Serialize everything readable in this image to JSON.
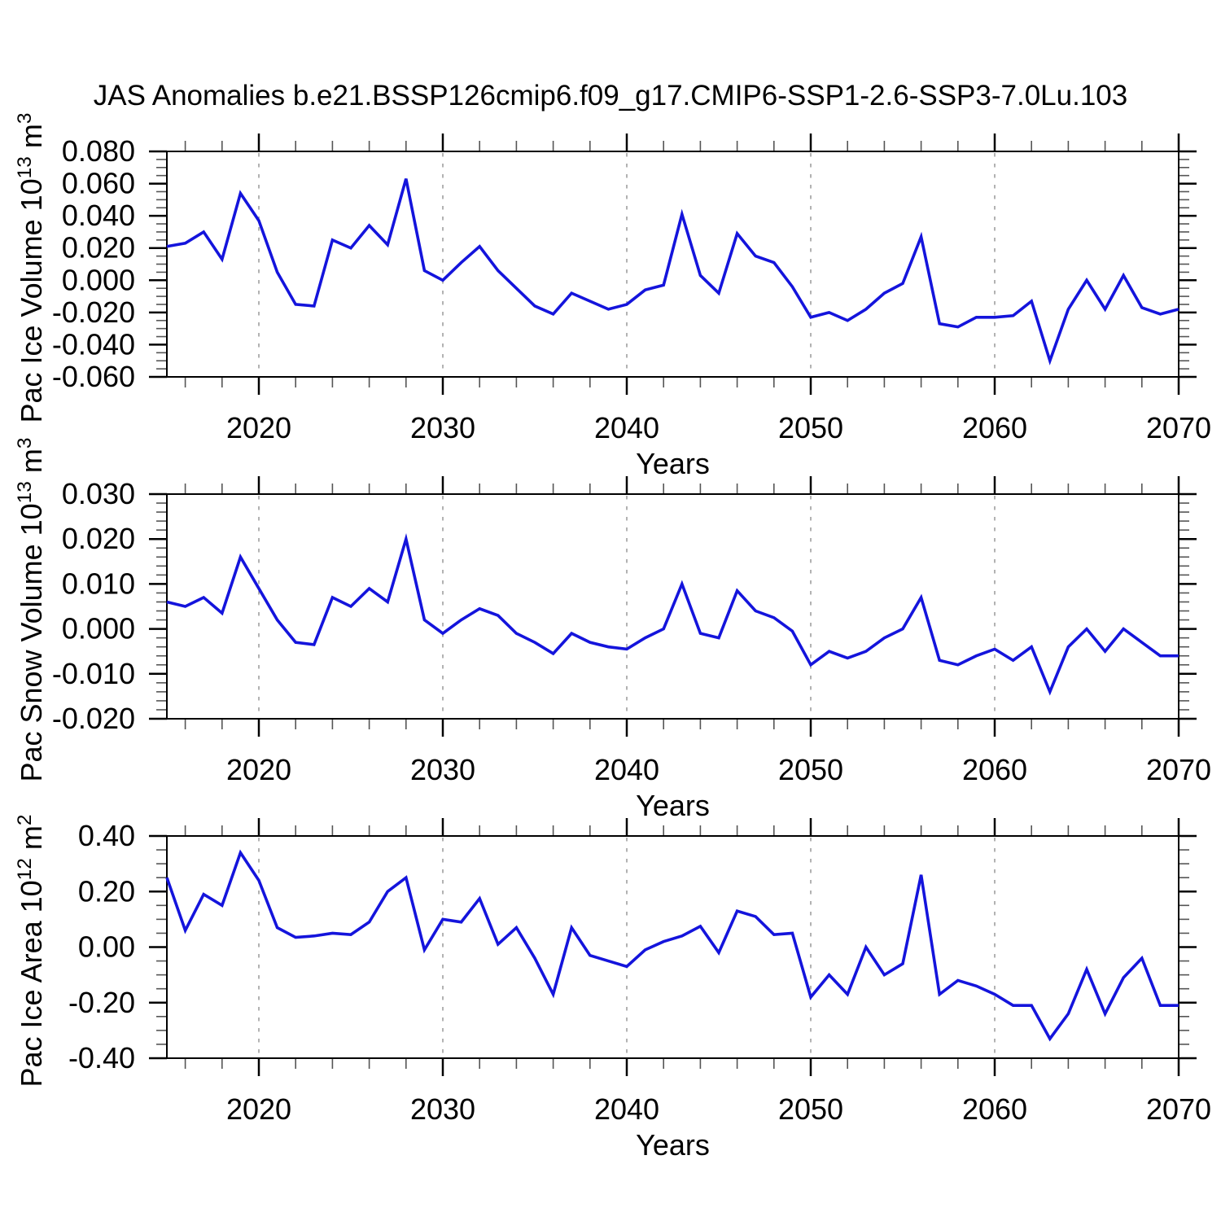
{
  "title": "JAS Anomalies b.e21.BSSP126cmip6.f09_g17.CMIP6-SSP1-2.6-SSP3-7.0Lu.103",
  "colors": {
    "line": "#1414dc",
    "axis": "#000000",
    "minor_tick": "#555555",
    "gridline": "#999999",
    "background": "#ffffff"
  },
  "x_axis": {
    "label": "Years",
    "range": [
      2015,
      2070
    ],
    "major_ticks": [
      2020,
      2030,
      2040,
      2050,
      2060,
      2070
    ],
    "major_tick_labels": [
      "2020",
      "2030",
      "2040",
      "2050",
      "2060",
      "2070"
    ],
    "minor_tick_step": 2,
    "gridlines": [
      2020,
      2030,
      2040,
      2050,
      2060
    ],
    "years": [
      2015,
      2016,
      2017,
      2018,
      2019,
      2020,
      2021,
      2022,
      2023,
      2024,
      2025,
      2026,
      2027,
      2028,
      2029,
      2030,
      2031,
      2032,
      2033,
      2034,
      2035,
      2036,
      2037,
      2038,
      2039,
      2040,
      2041,
      2042,
      2043,
      2044,
      2045,
      2046,
      2047,
      2048,
      2049,
      2050,
      2051,
      2052,
      2053,
      2054,
      2055,
      2056,
      2057,
      2058,
      2059,
      2060,
      2061,
      2062,
      2063,
      2064,
      2065,
      2066,
      2067,
      2068,
      2069,
      2070
    ]
  },
  "chart_data": [
    {
      "type": "line",
      "name": "pac-ice-volume",
      "xlabel": "Years",
      "ylabel": {
        "main": "Pac Ice Volume 10",
        "sup1": "13",
        "unit": " m",
        "sup2": "3"
      },
      "ylim": [
        -0.06,
        0.08
      ],
      "ytick_values": [
        0.08,
        0.06,
        0.04,
        0.02,
        0.0,
        -0.02,
        -0.04,
        -0.06
      ],
      "ytick_labels": [
        "0.080",
        "0.060",
        "0.040",
        "0.020",
        "0.000",
        "-0.020",
        "-0.040",
        "-0.060"
      ],
      "y_minor_step": 0.005,
      "grid_on": "vertical-dashed-only",
      "legend": "none",
      "values": [
        0.021,
        0.023,
        0.03,
        0.013,
        0.054,
        0.037,
        0.005,
        -0.015,
        -0.016,
        0.025,
        0.02,
        0.034,
        0.022,
        0.063,
        0.006,
        0.0,
        0.011,
        0.021,
        0.006,
        -0.005,
        -0.016,
        -0.021,
        -0.008,
        -0.013,
        -0.018,
        -0.015,
        -0.006,
        -0.003,
        0.041,
        0.003,
        -0.008,
        0.029,
        0.015,
        0.011,
        -0.004,
        -0.023,
        -0.02,
        -0.025,
        -0.018,
        -0.008,
        -0.002,
        0.027,
        -0.027,
        -0.029,
        -0.023,
        -0.023,
        -0.022,
        -0.013,
        -0.05,
        -0.018,
        0.0,
        -0.018,
        0.003,
        -0.017,
        -0.021,
        -0.018
      ]
    },
    {
      "type": "line",
      "name": "pac-snow-volume",
      "xlabel": "Years",
      "ylabel": {
        "main": "Pac Snow Volume 10",
        "sup1": "13",
        "unit": " m",
        "sup2": "3"
      },
      "ylim": [
        -0.02,
        0.03
      ],
      "ytick_values": [
        0.03,
        0.02,
        0.01,
        0.0,
        -0.01,
        -0.02
      ],
      "ytick_labels": [
        "0.030",
        "0.020",
        "0.010",
        "0.000",
        "-0.010",
        "-0.020"
      ],
      "y_minor_step": 0.002,
      "grid_on": "vertical-dashed-only",
      "legend": "none",
      "values": [
        0.006,
        0.005,
        0.007,
        0.0035,
        0.016,
        0.009,
        0.002,
        -0.003,
        -0.0035,
        0.007,
        0.005,
        0.009,
        0.006,
        0.02,
        0.002,
        -0.001,
        0.002,
        0.0045,
        0.003,
        -0.001,
        -0.003,
        -0.0055,
        -0.001,
        -0.003,
        -0.004,
        -0.0045,
        -0.002,
        0.0,
        0.01,
        -0.001,
        -0.002,
        0.0085,
        0.004,
        0.0025,
        -0.0005,
        -0.008,
        -0.005,
        -0.0065,
        -0.005,
        -0.002,
        0.0,
        0.007,
        -0.007,
        -0.008,
        -0.006,
        -0.0045,
        -0.007,
        -0.004,
        -0.014,
        -0.004,
        0.0,
        -0.005,
        0.0,
        -0.003,
        -0.006,
        -0.006
      ]
    },
    {
      "type": "line",
      "name": "pac-ice-area",
      "xlabel": "Years",
      "ylabel": {
        "main": "Pac Ice Area 10",
        "sup1": "12",
        "unit": " m",
        "sup2": "2"
      },
      "ylim": [
        -0.4,
        0.4
      ],
      "ytick_values": [
        0.4,
        0.2,
        0.0,
        -0.2,
        -0.4
      ],
      "ytick_labels": [
        "0.40",
        "0.20",
        "0.00",
        "-0.20",
        "-0.40"
      ],
      "y_minor_step": 0.05,
      "grid_on": "vertical-dashed-only",
      "legend": "none",
      "values": [
        0.25,
        0.06,
        0.19,
        0.15,
        0.34,
        0.24,
        0.07,
        0.035,
        0.04,
        0.05,
        0.045,
        0.09,
        0.2,
        0.25,
        -0.01,
        0.1,
        0.09,
        0.175,
        0.01,
        0.07,
        -0.04,
        -0.17,
        0.07,
        -0.03,
        -0.05,
        -0.07,
        -0.01,
        0.02,
        0.04,
        0.075,
        -0.02,
        0.13,
        0.11,
        0.045,
        0.05,
        -0.18,
        -0.1,
        -0.17,
        0.0,
        -0.1,
        -0.06,
        0.26,
        -0.17,
        -0.12,
        -0.14,
        -0.17,
        -0.21,
        -0.21,
        -0.33,
        -0.24,
        -0.08,
        -0.24,
        -0.11,
        -0.04,
        -0.21,
        -0.21
      ]
    }
  ]
}
